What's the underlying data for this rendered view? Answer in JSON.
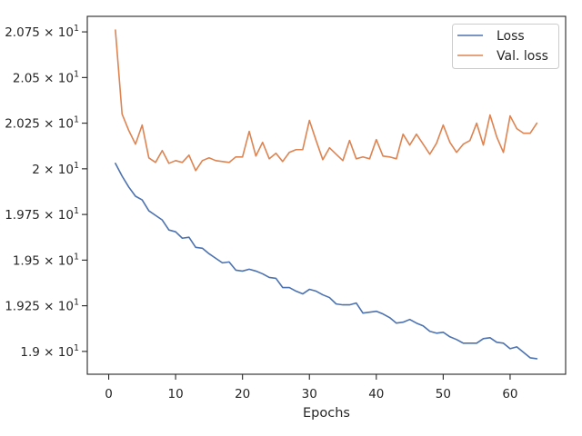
{
  "chart_data": {
    "type": "line",
    "title": "",
    "xlabel": "Epochs",
    "ylabel": "",
    "xlim": [
      -3.2,
      68.3
    ],
    "ylim": [
      18.875,
      20.835
    ],
    "grid": false,
    "legend_placement": "top-right",
    "x_ticks": [
      {
        "value": 0,
        "label": "0"
      },
      {
        "value": 10,
        "label": "10"
      },
      {
        "value": 20,
        "label": "20"
      },
      {
        "value": 30,
        "label": "30"
      },
      {
        "value": 40,
        "label": "40"
      },
      {
        "value": 50,
        "label": "50"
      },
      {
        "value": 60,
        "label": "60"
      }
    ],
    "y_ticks": [
      {
        "value": 19.0,
        "mantissa": "1.9",
        "exponent": "1"
      },
      {
        "value": 19.25,
        "mantissa": "1.925",
        "exponent": "1"
      },
      {
        "value": 19.5,
        "mantissa": "1.95",
        "exponent": "1"
      },
      {
        "value": 19.75,
        "mantissa": "1.975",
        "exponent": "1"
      },
      {
        "value": 20.0,
        "mantissa": "2",
        "exponent": "1"
      },
      {
        "value": 20.25,
        "mantissa": "2.025",
        "exponent": "1"
      },
      {
        "value": 20.5,
        "mantissa": "2.05",
        "exponent": "1"
      },
      {
        "value": 20.75,
        "mantissa": "2.075",
        "exponent": "1"
      }
    ],
    "x": [
      1,
      2,
      3,
      4,
      5,
      6,
      7,
      8,
      9,
      10,
      11,
      12,
      13,
      14,
      15,
      16,
      17,
      18,
      19,
      20,
      21,
      22,
      23,
      24,
      25,
      26,
      27,
      28,
      29,
      30,
      31,
      32,
      33,
      34,
      35,
      36,
      37,
      38,
      39,
      40,
      41,
      42,
      43,
      44,
      45,
      46,
      47,
      48,
      49,
      50,
      51,
      52,
      53,
      54,
      55,
      56,
      57,
      58,
      59,
      60,
      61,
      62,
      63,
      64
    ],
    "series": [
      {
        "name": "Loss",
        "color": "#4c72b0",
        "values": [
          20.03,
          19.96,
          19.9,
          19.85,
          19.83,
          19.77,
          19.745,
          19.72,
          19.665,
          19.655,
          19.62,
          19.625,
          19.57,
          19.565,
          19.535,
          19.51,
          19.485,
          19.49,
          19.445,
          19.44,
          19.45,
          19.44,
          19.425,
          19.405,
          19.4,
          19.35,
          19.35,
          19.33,
          19.315,
          19.34,
          19.33,
          19.31,
          19.295,
          19.26,
          19.255,
          19.255,
          19.265,
          19.21,
          19.215,
          19.22,
          19.205,
          19.185,
          19.155,
          19.16,
          19.175,
          19.155,
          19.14,
          19.11,
          19.1,
          19.105,
          19.08,
          19.065,
          19.045,
          19.045,
          19.045,
          19.07,
          19.075,
          19.05,
          19.045,
          19.015,
          19.025,
          18.995,
          18.965,
          18.96
        ]
      },
      {
        "name": "Val. loss",
        "color": "#dd8452",
        "values": [
          20.76,
          20.3,
          20.21,
          20.135,
          20.24,
          20.06,
          20.035,
          20.1,
          20.03,
          20.045,
          20.035,
          20.075,
          19.99,
          20.045,
          20.06,
          20.045,
          20.04,
          20.035,
          20.065,
          20.065,
          20.205,
          20.07,
          20.145,
          20.055,
          20.085,
          20.04,
          20.09,
          20.105,
          20.105,
          20.265,
          20.155,
          20.05,
          20.115,
          20.08,
          20.045,
          20.155,
          20.055,
          20.065,
          20.055,
          20.16,
          20.07,
          20.065,
          20.055,
          20.19,
          20.13,
          20.19,
          20.135,
          20.08,
          20.14,
          20.24,
          20.145,
          20.09,
          20.135,
          20.155,
          20.25,
          20.13,
          20.295,
          20.175,
          20.09,
          20.29,
          20.22,
          20.195,
          20.195,
          20.25
        ]
      }
    ]
  }
}
